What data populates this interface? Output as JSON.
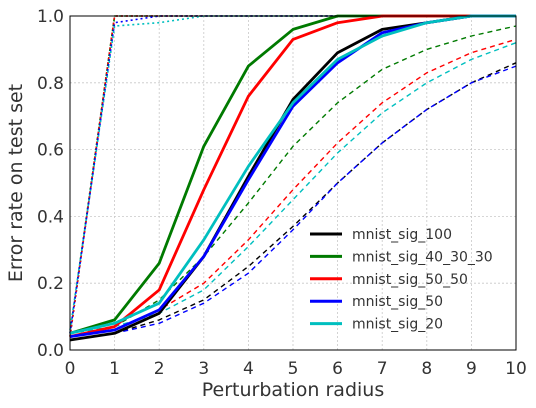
{
  "chart_data": {
    "type": "line",
    "xlabel": "Perturbation radius",
    "ylabel": "Error rate on test set",
    "xlim": [
      0,
      10
    ],
    "ylim": [
      0,
      1
    ],
    "xticks": [
      "0",
      "1",
      "2",
      "3",
      "4",
      "5",
      "6",
      "7",
      "8",
      "9",
      "10"
    ],
    "yticks": [
      "0.0",
      "0.2",
      "0.4",
      "0.6",
      "0.8",
      "1.0"
    ],
    "grid": true,
    "legend_position": "lower-right",
    "x": [
      0,
      1,
      2,
      3,
      4,
      5,
      6,
      7,
      8,
      9,
      10
    ],
    "series": [
      {
        "name": "mnist_sig_100",
        "color": "#000000",
        "solid": [
          0.03,
          0.05,
          0.11,
          0.28,
          0.52,
          0.75,
          0.89,
          0.96,
          0.98,
          1.0,
          1.0
        ],
        "dashed": [
          0.03,
          0.05,
          0.09,
          0.15,
          0.25,
          0.37,
          0.5,
          0.62,
          0.72,
          0.8,
          0.86
        ],
        "dotted": [
          0.04,
          1.0,
          1.0,
          1.0,
          1.0,
          1.0,
          1.0,
          1.0,
          1.0,
          1.0,
          1.0
        ]
      },
      {
        "name": "mnist_sig_40_30_30",
        "color": "#007a00",
        "solid": [
          0.05,
          0.09,
          0.26,
          0.61,
          0.85,
          0.96,
          1.0,
          1.0,
          1.0,
          1.0,
          1.0
        ],
        "dashed": [
          0.05,
          0.07,
          0.15,
          0.28,
          0.44,
          0.61,
          0.74,
          0.84,
          0.9,
          0.94,
          0.97
        ],
        "dotted": [
          0.05,
          1.0,
          1.0,
          1.0,
          1.0,
          1.0,
          1.0,
          1.0,
          1.0,
          1.0,
          1.0
        ]
      },
      {
        "name": "mnist_sig_50_50",
        "color": "#ff0000",
        "solid": [
          0.04,
          0.07,
          0.18,
          0.48,
          0.76,
          0.93,
          0.98,
          1.0,
          1.0,
          1.0,
          1.0
        ],
        "dashed": [
          0.04,
          0.06,
          0.12,
          0.2,
          0.33,
          0.48,
          0.62,
          0.74,
          0.83,
          0.89,
          0.93
        ],
        "dotted": [
          0.04,
          1.0,
          1.0,
          1.0,
          1.0,
          1.0,
          1.0,
          1.0,
          1.0,
          1.0,
          1.0
        ]
      },
      {
        "name": "mnist_sig_50",
        "color": "#0000ff",
        "solid": [
          0.04,
          0.06,
          0.12,
          0.28,
          0.51,
          0.73,
          0.86,
          0.95,
          0.98,
          1.0,
          1.0
        ],
        "dashed": [
          0.03,
          0.05,
          0.08,
          0.14,
          0.23,
          0.36,
          0.5,
          0.62,
          0.72,
          0.8,
          0.85
        ],
        "dotted": [
          0.05,
          0.98,
          1.0,
          1.0,
          1.0,
          1.0,
          1.0,
          1.0,
          1.0,
          1.0,
          1.0
        ]
      },
      {
        "name": "mnist_sig_20",
        "color": "#00bfbf",
        "solid": [
          0.05,
          0.08,
          0.14,
          0.33,
          0.55,
          0.74,
          0.87,
          0.94,
          0.98,
          1.0,
          1.0
        ],
        "dashed": [
          0.05,
          0.07,
          0.11,
          0.18,
          0.31,
          0.45,
          0.59,
          0.71,
          0.8,
          0.87,
          0.92
        ],
        "dotted": [
          0.06,
          0.97,
          0.98,
          1.0,
          1.0,
          1.0,
          1.0,
          1.0,
          1.0,
          1.0,
          1.0
        ]
      }
    ]
  }
}
